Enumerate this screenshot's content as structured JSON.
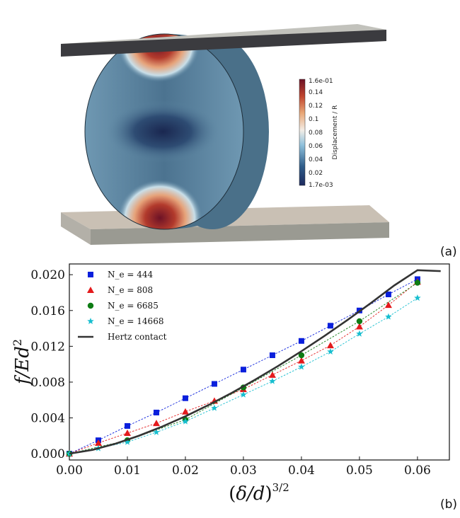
{
  "panels": {
    "a": "(a)",
    "b": "(b)"
  },
  "colorbar": {
    "title": "Displacement / R",
    "max_label": "1.6e-01",
    "min_label": "1.7e-03",
    "ticks": [
      "0.14",
      "0.12",
      "0.1",
      "0.08",
      "0.06",
      "0.04",
      "0.02"
    ],
    "stops": [
      "#1d2a5e",
      "#2f5d8a",
      "#8fc1dc",
      "#f3ede6",
      "#e8a878",
      "#c0442e",
      "#6d1226"
    ]
  },
  "colors": {
    "plate_top": "#b8b8b0",
    "plate_dark": "#3a3a3e",
    "plate_bottom": "#c8bfb3",
    "disk_side": "#4f7791",
    "disk_face": "#5e88a3"
  },
  "chart_data": {
    "type": "line",
    "xlabel": "(δ/d)^{3/2}",
    "ylabel": "f/Ed^2",
    "xlim": [
      0.0,
      0.0655
    ],
    "ylim": [
      -0.0007,
      0.0212
    ],
    "x_ticks": [
      "0.00",
      "0.01",
      "0.02",
      "0.03",
      "0.04",
      "0.05",
      "0.06"
    ],
    "y_ticks": [
      "0.000",
      "0.004",
      "0.008",
      "0.012",
      "0.016",
      "0.020"
    ],
    "grid": false,
    "legend_position": "top-left",
    "series": [
      {
        "name": "N_e = 444",
        "legend_label": "N_e = 444",
        "marker": "square",
        "color": "#0a1fdc",
        "x": [
          0.0,
          0.005,
          0.01,
          0.015,
          0.02,
          0.025,
          0.03,
          0.035,
          0.04,
          0.045,
          0.05,
          0.055,
          0.06
        ],
        "y": [
          0.0,
          0.0015,
          0.0031,
          0.0046,
          0.0062,
          0.0078,
          0.0094,
          0.011,
          0.0126,
          0.0143,
          0.016,
          0.0178,
          0.0195
        ]
      },
      {
        "name": "N_e = 808",
        "legend_label": "N_e = 808",
        "marker": "triangle",
        "color": "#e41a1c",
        "x": [
          0.0,
          0.005,
          0.01,
          0.015,
          0.02,
          0.025,
          0.03,
          0.035,
          0.04,
          0.045,
          0.05,
          0.055,
          0.06
        ],
        "y": [
          0.0,
          0.0012,
          0.0023,
          0.0034,
          0.0047,
          0.0059,
          0.0072,
          0.0088,
          0.0104,
          0.0121,
          0.0142,
          0.0166,
          0.0192
        ]
      },
      {
        "name": "N_e = 6685",
        "legend_label": "N_e = 6685",
        "marker": "circle",
        "color": "#0e7c14",
        "x": [
          0.0,
          0.01,
          0.02,
          0.03,
          0.04,
          0.05,
          0.06
        ],
        "y": [
          0.0,
          0.0015,
          0.0038,
          0.0074,
          0.011,
          0.0148,
          0.0191
        ]
      },
      {
        "name": "N_e = 14668",
        "legend_label": "N_e = 14668",
        "marker": "star",
        "color": "#17becf",
        "x": [
          0.0,
          0.005,
          0.01,
          0.015,
          0.02,
          0.025,
          0.03,
          0.035,
          0.04,
          0.045,
          0.05,
          0.055,
          0.06
        ],
        "y": [
          0.0,
          0.0006,
          0.0013,
          0.0024,
          0.0036,
          0.0051,
          0.0066,
          0.0081,
          0.0097,
          0.0114,
          0.0134,
          0.0153,
          0.0174
        ]
      },
      {
        "name": "Hertz contact",
        "legend_label": "Hertz contact",
        "marker": "none",
        "color": "#333333",
        "x": [
          0.0,
          0.004,
          0.008,
          0.012,
          0.016,
          0.02,
          0.024,
          0.028,
          0.032,
          0.036,
          0.04,
          0.044,
          0.048,
          0.052,
          0.056,
          0.06,
          0.064
        ],
        "y": [
          0.0,
          0.00043,
          0.00113,
          0.00201,
          0.00303,
          0.00418,
          0.00544,
          0.0068,
          0.00826,
          0.00981,
          0.01145,
          0.01317,
          0.01497,
          0.01685,
          0.0188,
          0.0205,
          0.0204
        ]
      }
    ]
  }
}
